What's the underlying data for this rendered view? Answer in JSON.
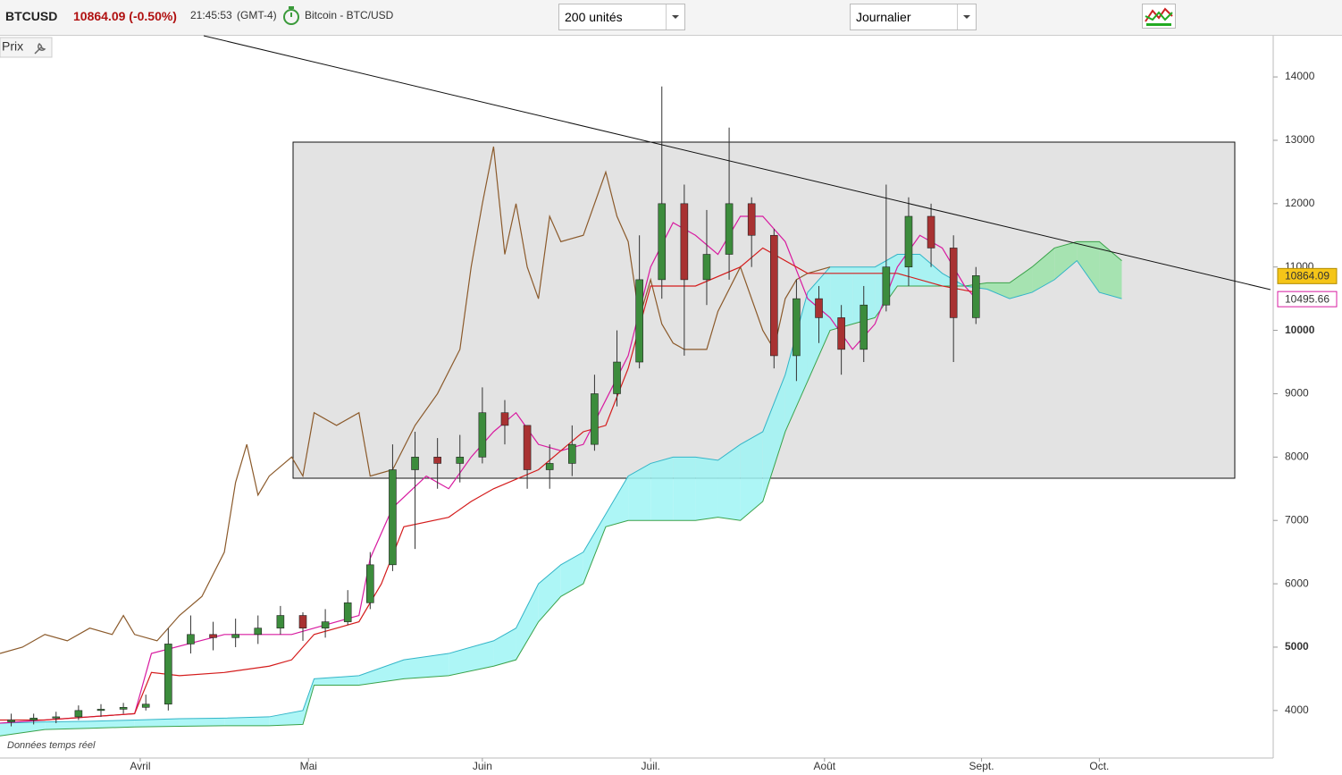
{
  "header": {
    "symbol": "BTCUSD",
    "price": "10864.09 (-0.50%)",
    "time": "21:45:53",
    "timezone": "(GMT-4)",
    "instrument": "Bitcoin - BTC/USD",
    "units_select": "200 unités",
    "period_select": "Journalier",
    "price_button": "Prix",
    "footer_note": "Données temps réel"
  },
  "chart_data": {
    "type": "candlestick",
    "xlim": [
      0,
      227
    ],
    "xticks": [
      {
        "value": 25,
        "label": "Avril"
      },
      {
        "value": 55,
        "label": "Mai"
      },
      {
        "value": 86,
        "label": "Juin"
      },
      {
        "value": 116,
        "label": "Juil."
      },
      {
        "value": 147,
        "label": "Août"
      },
      {
        "value": 175,
        "label": "Sept."
      },
      {
        "value": 196,
        "label": "Oct."
      }
    ],
    "ylim": [
      3250,
      14650
    ],
    "yticks": [
      4000,
      5000,
      6000,
      7000,
      8000,
      9000,
      10000,
      11000,
      12000,
      13000,
      14000
    ],
    "up_color": "#3c8c3c",
    "down_color": "#a83232",
    "x": [
      2,
      6,
      10,
      14,
      18,
      22,
      26,
      30,
      34,
      38,
      42,
      46,
      50,
      54,
      58,
      62,
      66,
      70,
      74,
      78,
      82,
      86,
      90,
      94,
      98,
      102,
      106,
      110,
      114,
      118,
      122,
      126,
      130,
      134,
      138,
      142,
      146,
      150,
      154,
      158,
      162,
      166,
      170,
      174
    ],
    "open": [
      3820,
      3850,
      3880,
      3900,
      4000,
      4020,
      4050,
      4100,
      5050,
      5200,
      5150,
      5200,
      5300,
      5500,
      5300,
      5400,
      5700,
      6300,
      7800,
      8000,
      7900,
      8000,
      8700,
      8500,
      7800,
      7900,
      8200,
      9000,
      9500,
      10800,
      12000,
      10800,
      11200,
      12000,
      11500,
      9600,
      10500,
      10200,
      9700,
      10400,
      11000,
      11800,
      11300,
      10200
    ],
    "high": [
      3950,
      3950,
      3980,
      4080,
      4100,
      4120,
      4250,
      5300,
      5500,
      5400,
      5450,
      5500,
      5650,
      5550,
      5600,
      5900,
      6500,
      8200,
      8400,
      8300,
      8350,
      9100,
      8900,
      8500,
      8200,
      8500,
      9300,
      10000,
      11500,
      13850,
      12300,
      11900,
      13200,
      12100,
      11600,
      10800,
      10700,
      10400,
      10700,
      12300,
      12100,
      12000,
      11500,
      11000
    ],
    "low": [
      3750,
      3780,
      3800,
      3850,
      3900,
      3950,
      4000,
      4000,
      4900,
      4950,
      5000,
      5050,
      5200,
      5100,
      5150,
      5350,
      5600,
      6200,
      6550,
      7500,
      7600,
      7900,
      8200,
      7500,
      7500,
      7700,
      8100,
      8800,
      9400,
      10500,
      9600,
      10400,
      10800,
      11000,
      9400,
      9200,
      9800,
      9300,
      9500,
      10300,
      10700,
      11000,
      9500,
      10100
    ],
    "close": [
      3850,
      3880,
      3900,
      4000,
      4020,
      4050,
      4100,
      5050,
      5200,
      5150,
      5200,
      5300,
      5500,
      5300,
      5400,
      5700,
      6300,
      7800,
      8000,
      7900,
      8000,
      8700,
      8500,
      7800,
      7900,
      8200,
      9000,
      9500,
      10800,
      12000,
      10800,
      11200,
      12000,
      11500,
      9600,
      10500,
      10200,
      9700,
      10400,
      11000,
      11800,
      11300,
      10200,
      10864.09
    ],
    "cloud": {
      "up_color": "#9ff5f5",
      "down_color": "#9be3a8",
      "a_color": "#33b5c8",
      "b_color": "#3aa24a",
      "x": [
        0,
        8,
        16,
        24,
        32,
        40,
        48,
        54,
        56,
        64,
        72,
        80,
        88,
        92,
        96,
        100,
        104,
        108,
        112,
        116,
        120,
        124,
        128,
        132,
        136,
        140,
        144,
        148,
        152,
        156,
        160,
        164,
        168,
        172,
        176,
        180,
        184,
        188,
        192,
        196,
        200
      ],
      "span_a": [
        3800,
        3820,
        3830,
        3850,
        3870,
        3880,
        3900,
        4000,
        4500,
        4550,
        4800,
        4900,
        5100,
        5300,
        6000,
        6300,
        6500,
        7100,
        7700,
        7900,
        8000,
        8000,
        7950,
        8200,
        8400,
        9300,
        10600,
        11000,
        11000,
        11000,
        11200,
        11200,
        10900,
        10700,
        10650,
        10500,
        10600,
        10800,
        11100,
        10600,
        10500
      ],
      "span_b": [
        3600,
        3700,
        3720,
        3740,
        3750,
        3760,
        3760,
        3780,
        4400,
        4400,
        4500,
        4550,
        4700,
        4800,
        5400,
        5800,
        6000,
        6900,
        7000,
        7000,
        7000,
        7000,
        7050,
        7000,
        7300,
        8400,
        9200,
        10000,
        10100,
        10200,
        10700,
        10700,
        10700,
        10700,
        10750,
        10750,
        11000,
        11300,
        11400,
        11400,
        11100
      ]
    },
    "series": [
      {
        "color": "#8b5a2b",
        "x": [
          0,
          4,
          8,
          12,
          16,
          20,
          22,
          24,
          28,
          32,
          36,
          40,
          42,
          44,
          46,
          48,
          52,
          54,
          56,
          60,
          64,
          66,
          70,
          74,
          78,
          82,
          84,
          86,
          88,
          90,
          92,
          94,
          96,
          98,
          100,
          104,
          108,
          110,
          112,
          114,
          116,
          118,
          120,
          122,
          126,
          128,
          132,
          136,
          138,
          140,
          142,
          144,
          148
        ],
        "values": [
          4900,
          5000,
          5200,
          5100,
          5300,
          5200,
          5500,
          5200,
          5100,
          5500,
          5800,
          6500,
          7600,
          8200,
          7400,
          7700,
          8000,
          7700,
          8700,
          8500,
          8700,
          7700,
          7800,
          8500,
          9000,
          9700,
          11000,
          12000,
          12900,
          11200,
          12000,
          11000,
          10500,
          11800,
          11400,
          11500,
          12500,
          11800,
          11400,
          10200,
          10800,
          10100,
          9800,
          9700,
          9700,
          10300,
          11000,
          10000,
          9700,
          10500,
          10800,
          10900,
          11000
        ]
      },
      {
        "color": "#d81ba0",
        "x": [
          0,
          24,
          27,
          40,
          48,
          52,
          56,
          64,
          66,
          70,
          76,
          80,
          84,
          88,
          92,
          96,
          100,
          104,
          108,
          112,
          116,
          120,
          124,
          128,
          132,
          136,
          140,
          144,
          148,
          152,
          156,
          160,
          164,
          168,
          172,
          174
        ],
        "values": [
          3800,
          3950,
          4900,
          5200,
          5200,
          5200,
          5300,
          5500,
          6400,
          7200,
          7700,
          7500,
          8000,
          8400,
          8700,
          8200,
          8100,
          8200,
          8900,
          9600,
          11000,
          11700,
          11500,
          11200,
          11800,
          11800,
          11400,
          10500,
          10200,
          9700,
          10100,
          11000,
          11500,
          11300,
          10700,
          10500
        ]
      },
      {
        "color": "#d41c1c",
        "x": [
          0,
          8,
          16,
          24,
          27,
          32,
          40,
          48,
          52,
          56,
          64,
          68,
          72,
          80,
          84,
          88,
          96,
          104,
          108,
          112,
          116,
          124,
          132,
          136,
          144,
          152,
          160,
          168,
          174
        ],
        "values": [
          3850,
          3850,
          3900,
          3950,
          4600,
          4550,
          4600,
          4700,
          4800,
          5200,
          5400,
          6000,
          6900,
          7050,
          7300,
          7500,
          7800,
          8400,
          8500,
          9400,
          10700,
          10700,
          11000,
          11300,
          10900,
          10900,
          10900,
          10700,
          10600
        ]
      }
    ],
    "last_price_label": "10864.09",
    "tenkan_label": "10495.66",
    "last_price_color": "#f5c518",
    "tenkan_label_color": "#d81ba0"
  }
}
